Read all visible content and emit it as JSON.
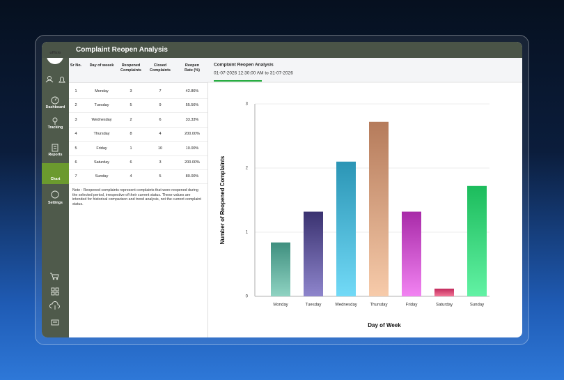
{
  "header": {
    "title": "Complaint Reopen Analysis"
  },
  "sidebar": {
    "logo": "uffizio",
    "items": [
      "Dashboard",
      "Tracking",
      "Reports",
      "Chart",
      "Settings"
    ],
    "active": 3
  },
  "table": {
    "columns": [
      "Sr No.",
      "Day of weeek",
      "Reopened Complaints",
      "Closed Complaints",
      "Reopen Rate (%)"
    ],
    "rows": [
      [
        "1",
        "Monday",
        "3",
        "7",
        "42.86%"
      ],
      [
        "2",
        "Tuesday",
        "5",
        "9",
        "55.56%"
      ],
      [
        "3",
        "Wednesday",
        "2",
        "6",
        "33.33%"
      ],
      [
        "4",
        "Thursday",
        "8",
        "4",
        "200.00%"
      ],
      [
        "5",
        "Friday",
        "1",
        "10",
        "10.00%"
      ],
      [
        "6",
        "Saturday",
        "6",
        "3",
        "200.00%"
      ],
      [
        "7",
        "Sunday",
        "4",
        "5",
        "80.00%"
      ]
    ],
    "note": "Note : Reopened complaints represent complaints that were reopened during the selected period, irrespective of their current status. These values are intended for historical comparison and trend analysis, not the current complaint status."
  },
  "chart_data": {
    "type": "bar",
    "title": "Complaint Reopen Analysis",
    "subtitle": "01-07-2026 12:30:00 AM to 31-07-2026",
    "categories": [
      "Monday",
      "Tuesday",
      "Wednesday",
      "Thursday",
      "Friday",
      "Saturday",
      "Sunday"
    ],
    "values": [
      0.84,
      1.32,
      2.1,
      2.72,
      1.32,
      0.12,
      1.72
    ],
    "colors": [
      [
        "#3f8f7f",
        "#8fd3c2"
      ],
      [
        "#3a3270",
        "#8e85cc"
      ],
      [
        "#2b95b5",
        "#72daf7"
      ],
      [
        "#b57b5b",
        "#f7cbaa"
      ],
      [
        "#a82aa8",
        "#f283f2"
      ],
      [
        "#c22a5c",
        "#f27898"
      ],
      [
        "#1cbc5c",
        "#62f2a4"
      ]
    ],
    "ylim": [
      0,
      3
    ],
    "yticks": [
      0,
      1,
      2,
      3
    ],
    "grid": true,
    "xlabel": "Day of Week",
    "ylabel": "Number of Reopened Complaints"
  }
}
